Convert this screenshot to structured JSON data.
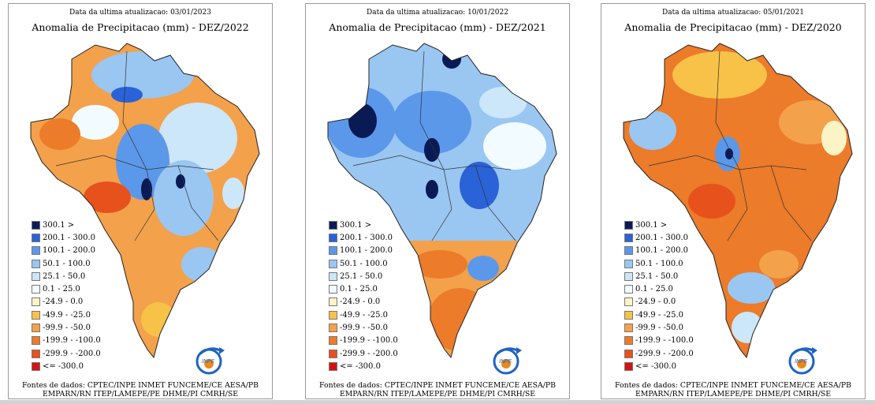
{
  "legend": [
    {
      "label": "300.1 >",
      "color": "#0a1a55"
    },
    {
      "label": "200.1 - 300.0",
      "color": "#2a62d8"
    },
    {
      "label": "100.1 - 200.0",
      "color": "#5b98ea"
    },
    {
      "label": "50.1 - 100.0",
      "color": "#9ac6f2"
    },
    {
      "label": "25.1 - 50.0",
      "color": "#cce6fa"
    },
    {
      "label": "0.1 - 25.0",
      "color": "#f2fbff"
    },
    {
      "label": "-24.9 - 0.0",
      "color": "#fdf4c6"
    },
    {
      "label": "-49.9 - -25.0",
      "color": "#f7c247"
    },
    {
      "label": "-99.9 - -50.0",
      "color": "#f3a14b"
    },
    {
      "label": "-199.9 - -100.0",
      "color": "#ec7b2a"
    },
    {
      "label": "-299.9 - -200.0",
      "color": "#e7521c"
    },
    {
      "label": "<= -300.0",
      "color": "#d51212"
    }
  ],
  "panels": [
    {
      "updated": "Data da ultima atualizacao: 03/01/2023",
      "title": "Anomalia de Precipitacao (mm) - DEZ/2022",
      "sources": [
        "Fontes de dados: CPTEC/INPE INMET FUNCEME/CE AESA/PB",
        "EMPARN/RN ITEP/LAMEPE/PE DHME/PI CMRH/SE SEMARH/DHN/AL COMET/RJ"
      ]
    },
    {
      "updated": "Data da ultima atualizacao: 10/01/2022",
      "title": "Anomalia de Precipitacao (mm) - DEZ/2021",
      "sources": [
        "Fontes de dados: CPTEC/INPE INMET FUNCEME/CE AESA/PB",
        "EMPARN/RN ITEP/LAMEPE/PE DHME/PI CMRH/SE SEMARH/DHN/AL COMET/RJ"
      ]
    },
    {
      "updated": "Data da ultima atualizacao: 05/01/2021",
      "title": "Anomalia de Precipitacao (mm) - DEZ/2020",
      "sources": [
        "Fontes de dados: CPTEC/INPE INMET FUNCEME/CE AESA/PB",
        "EMPARN/RN ITEP/LAMEPE/PE DHME/PI CMRH/SE SEMARH/DHN/AL COMET/RJ"
      ]
    }
  ],
  "logo": {
    "text": "INPE",
    "icon": "inpe-logo-icon"
  }
}
